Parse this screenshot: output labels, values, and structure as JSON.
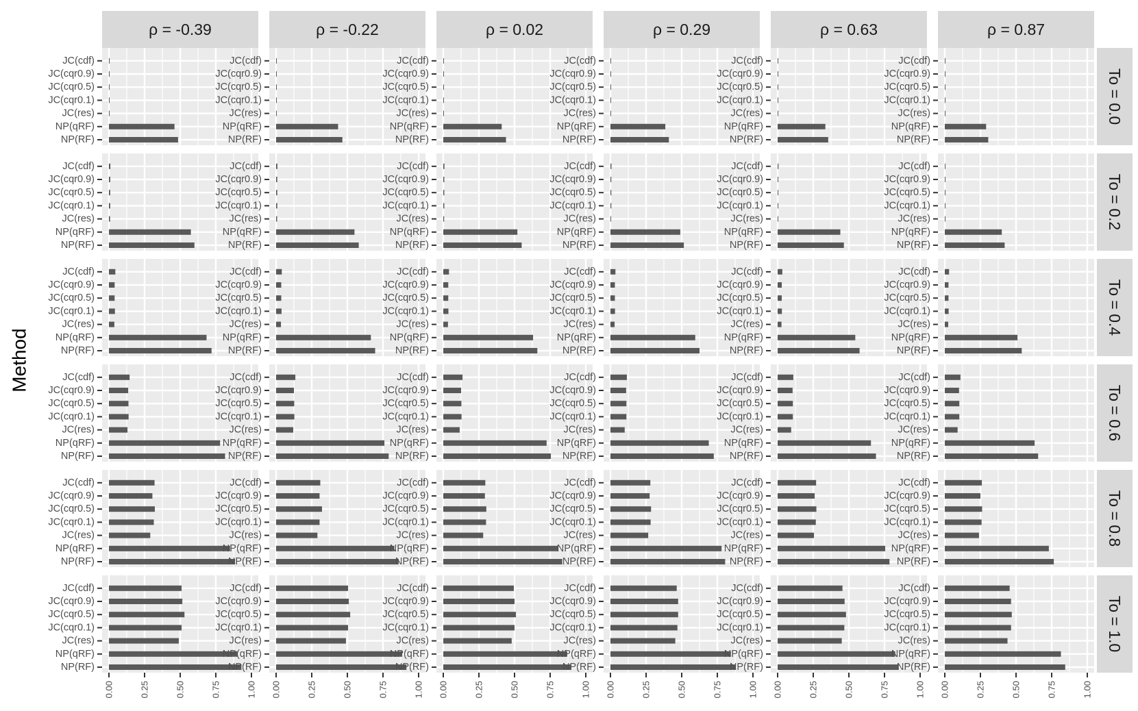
{
  "chart_data": {
    "type": "bar",
    "orientation": "horizontal",
    "ylabel": "Method",
    "xlabel": "",
    "xlim": [
      0,
      1
    ],
    "x_ticks": [
      "0.00",
      "0.25",
      "0.50",
      "0.75",
      "1.00"
    ],
    "x_tick_values": [
      0,
      0.25,
      0.5,
      0.75,
      1.0
    ],
    "grid": true,
    "legend": "none",
    "colors": {
      "bar": "#595959",
      "panel_bg": "#ebebeb",
      "grid": "#ffffff",
      "strip_bg": "#d9d9d9",
      "tick_text": "#4d4d4d",
      "tick_mark": "#333333"
    },
    "categories": [
      "JC(cdf)",
      "JC(cqr0.9)",
      "JC(cqr0.5)",
      "JC(cqr0.1)",
      "JC(res)",
      "NP(qRF)",
      "NP(RF)"
    ],
    "col_facets": [
      "ρ = -0.39",
      "ρ = -0.22",
      "ρ = 0.02",
      "ρ = 0.29",
      "ρ = 0.63",
      "ρ = 0.87"
    ],
    "row_facets": [
      "To = 0.0",
      "To = 0.2",
      "To = 0.4",
      "To = 0.6",
      "To = 0.8",
      "To = 1.0"
    ],
    "values": [
      [
        [
          0.005,
          0.004,
          0.004,
          0.004,
          0.004,
          0.46,
          0.485
        ],
        [
          0.004,
          0.003,
          0.003,
          0.003,
          0.003,
          0.435,
          0.465
        ],
        [
          0.003,
          0.002,
          0.002,
          0.002,
          0.002,
          0.41,
          0.44
        ],
        [
          0.003,
          0.002,
          0.002,
          0.002,
          0.002,
          0.385,
          0.41
        ],
        [
          0.002,
          0.002,
          0.002,
          0.002,
          0.002,
          0.335,
          0.355
        ],
        [
          0.002,
          0.001,
          0.001,
          0.001,
          0.001,
          0.29,
          0.305
        ]
      ],
      [
        [
          0.01,
          0.009,
          0.009,
          0.009,
          0.008,
          0.575,
          0.6
        ],
        [
          0.009,
          0.008,
          0.008,
          0.008,
          0.007,
          0.55,
          0.58
        ],
        [
          0.008,
          0.007,
          0.007,
          0.007,
          0.006,
          0.52,
          0.55
        ],
        [
          0.007,
          0.006,
          0.006,
          0.006,
          0.005,
          0.49,
          0.515
        ],
        [
          0.006,
          0.005,
          0.005,
          0.005,
          0.004,
          0.44,
          0.465
        ],
        [
          0.004,
          0.004,
          0.004,
          0.004,
          0.003,
          0.4,
          0.42
        ]
      ],
      [
        [
          0.045,
          0.04,
          0.04,
          0.042,
          0.038,
          0.685,
          0.72
        ],
        [
          0.04,
          0.036,
          0.036,
          0.038,
          0.034,
          0.665,
          0.695
        ],
        [
          0.04,
          0.035,
          0.035,
          0.036,
          0.033,
          0.63,
          0.66
        ],
        [
          0.035,
          0.031,
          0.031,
          0.032,
          0.029,
          0.595,
          0.625
        ],
        [
          0.033,
          0.029,
          0.029,
          0.03,
          0.027,
          0.545,
          0.575
        ],
        [
          0.03,
          0.026,
          0.026,
          0.027,
          0.024,
          0.51,
          0.54
        ]
      ],
      [
        [
          0.145,
          0.135,
          0.137,
          0.138,
          0.13,
          0.78,
          0.815
        ],
        [
          0.135,
          0.125,
          0.127,
          0.128,
          0.12,
          0.76,
          0.79
        ],
        [
          0.135,
          0.125,
          0.127,
          0.128,
          0.115,
          0.725,
          0.755
        ],
        [
          0.115,
          0.11,
          0.112,
          0.112,
          0.1,
          0.69,
          0.725
        ],
        [
          0.11,
          0.105,
          0.107,
          0.107,
          0.095,
          0.655,
          0.69
        ],
        [
          0.11,
          0.1,
          0.102,
          0.102,
          0.09,
          0.63,
          0.655
        ]
      ],
      [
        [
          0.32,
          0.305,
          0.322,
          0.315,
          0.29,
          0.85,
          0.885
        ],
        [
          0.31,
          0.305,
          0.322,
          0.305,
          0.29,
          0.83,
          0.86
        ],
        [
          0.295,
          0.292,
          0.302,
          0.3,
          0.28,
          0.805,
          0.835
        ],
        [
          0.28,
          0.275,
          0.285,
          0.282,
          0.265,
          0.78,
          0.805
        ],
        [
          0.27,
          0.26,
          0.272,
          0.268,
          0.255,
          0.755,
          0.785
        ],
        [
          0.26,
          0.25,
          0.262,
          0.258,
          0.24,
          0.73,
          0.765
        ]
      ],
      [
        [
          0.51,
          0.515,
          0.53,
          0.51,
          0.49,
          0.9,
          0.93
        ],
        [
          0.505,
          0.51,
          0.52,
          0.505,
          0.49,
          0.885,
          0.915
        ],
        [
          0.495,
          0.5,
          0.51,
          0.5,
          0.48,
          0.87,
          0.895
        ],
        [
          0.465,
          0.475,
          0.475,
          0.47,
          0.455,
          0.845,
          0.875
        ],
        [
          0.455,
          0.47,
          0.48,
          0.468,
          0.45,
          0.825,
          0.85
        ],
        [
          0.455,
          0.465,
          0.47,
          0.465,
          0.44,
          0.815,
          0.845
        ]
      ]
    ]
  }
}
